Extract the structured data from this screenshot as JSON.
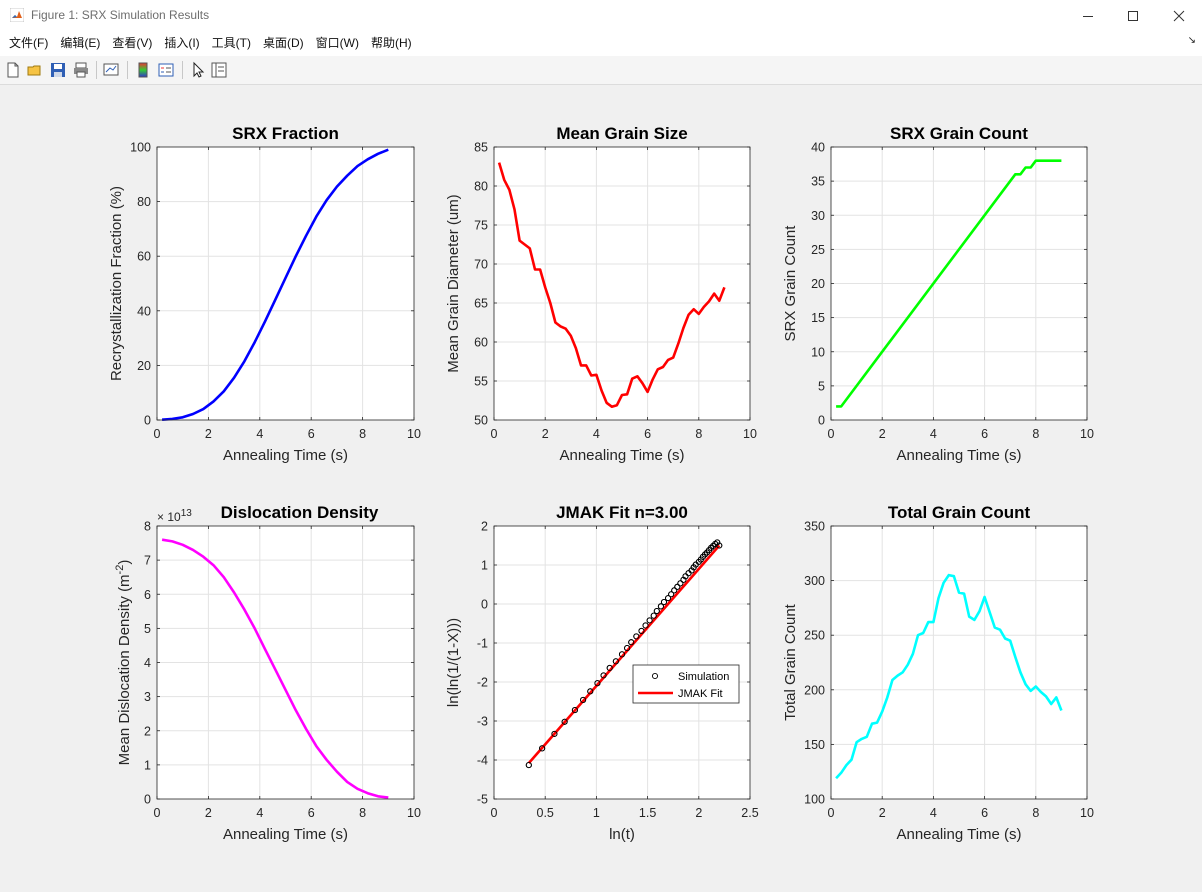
{
  "window": {
    "title": "Figure 1: SRX Simulation Results",
    "minimize_icon": "minimize-icon",
    "maximize_icon": "maximize-icon",
    "close_icon": "close-icon"
  },
  "menu": {
    "items": [
      "文件(F)",
      "编辑(E)",
      "查看(V)",
      "插入(I)",
      "工具(T)",
      "桌面(D)",
      "窗口(W)",
      "帮助(H)"
    ]
  },
  "toolbar": {
    "icons": [
      "new-figure-icon",
      "open-file-icon",
      "save-icon",
      "print-icon",
      "link-plot-icon",
      "insert-colorbar-icon",
      "insert-legend-icon",
      "edit-plot-icon",
      "property-inspector-icon"
    ]
  },
  "chart_data": [
    {
      "type": "line",
      "title": "SRX Fraction",
      "xlabel": "Annealing Time (s)",
      "ylabel": "Recrystallization Fraction (%)",
      "xlim": [
        0,
        10
      ],
      "ylim": [
        0,
        100
      ],
      "xticks": [
        0,
        2,
        4,
        6,
        8,
        10
      ],
      "yticks": [
        0,
        20,
        40,
        60,
        80,
        100
      ],
      "grid": true,
      "series": [
        {
          "color": "#0000ff",
          "x": [
            0.2,
            0.6,
            1.0,
            1.4,
            1.8,
            2.2,
            2.6,
            3.0,
            3.4,
            3.8,
            4.2,
            4.6,
            5.0,
            5.4,
            5.8,
            6.2,
            6.6,
            7.0,
            7.4,
            7.8,
            8.2,
            8.6,
            9.0
          ],
          "y": [
            0.1,
            0.4,
            1.0,
            2.2,
            4.0,
            6.8,
            10.5,
            15.5,
            21.5,
            28.5,
            36.0,
            44.0,
            52.0,
            60.0,
            67.5,
            74.5,
            80.5,
            85.5,
            89.5,
            93.0,
            95.5,
            97.5,
            99.0
          ]
        }
      ]
    },
    {
      "type": "line",
      "title": "Mean Grain Size",
      "xlabel": "Annealing Time (s)",
      "ylabel": "Mean Grain Diameter (um)",
      "xlim": [
        0,
        10
      ],
      "ylim": [
        50,
        85
      ],
      "xticks": [
        0,
        2,
        4,
        6,
        8,
        10
      ],
      "yticks": [
        50,
        55,
        60,
        65,
        70,
        75,
        80,
        85
      ],
      "grid": true,
      "series": [
        {
          "color": "#ff0000",
          "x": [
            0.2,
            0.4,
            0.6,
            0.8,
            1.0,
            1.2,
            1.4,
            1.6,
            1.8,
            2.0,
            2.2,
            2.4,
            2.6,
            2.8,
            3.0,
            3.2,
            3.4,
            3.6,
            3.8,
            4.0,
            4.2,
            4.4,
            4.6,
            4.8,
            5.0,
            5.2,
            5.4,
            5.6,
            5.8,
            6.0,
            6.2,
            6.4,
            6.6,
            6.8,
            7.0,
            7.2,
            7.4,
            7.6,
            7.8,
            8.0,
            8.2,
            8.4,
            8.6,
            8.8,
            9.0
          ],
          "y": [
            83.0,
            80.8,
            79.5,
            77.0,
            73.0,
            72.5,
            72.0,
            69.3,
            69.3,
            67.0,
            65.0,
            62.5,
            62.0,
            61.7,
            60.8,
            59.2,
            57.0,
            57.0,
            55.7,
            55.8,
            53.8,
            52.2,
            51.7,
            51.9,
            53.2,
            53.3,
            55.3,
            55.6,
            54.7,
            53.6,
            55.2,
            56.5,
            56.8,
            57.7,
            58.0,
            59.8,
            61.8,
            63.5,
            64.2,
            63.6,
            64.5,
            65.2,
            66.2,
            65.3,
            67.0
          ]
        }
      ]
    },
    {
      "type": "line",
      "title": "SRX Grain Count",
      "xlabel": "Annealing Time (s)",
      "ylabel": "SRX Grain Count",
      "xlim": [
        0,
        10
      ],
      "ylim": [
        0,
        40
      ],
      "xticks": [
        0,
        2,
        4,
        6,
        8,
        10
      ],
      "yticks": [
        0,
        5,
        10,
        15,
        20,
        25,
        30,
        35,
        40
      ],
      "grid": true,
      "series": [
        {
          "color": "#00ff00",
          "x": [
            0.2,
            0.4,
            7.2,
            7.4,
            7.6,
            7.8,
            8.0,
            8.2,
            9.0
          ],
          "y": [
            2,
            2,
            36,
            36,
            37,
            37,
            38,
            38,
            38
          ]
        }
      ]
    },
    {
      "type": "line",
      "title": "Dislocation Density",
      "xlabel": "Annealing Time (s)",
      "ylabel": "Mean Dislocation Density (m",
      "ylabel_sup": "-2",
      "ylabel_end": ")",
      "exponent_base": "× 10",
      "exponent_power": "13",
      "xlim": [
        0,
        10
      ],
      "ylim": [
        0,
        8
      ],
      "xticks": [
        0,
        2,
        4,
        6,
        8,
        10
      ],
      "yticks": [
        0,
        1,
        2,
        3,
        4,
        5,
        6,
        7,
        8
      ],
      "grid": true,
      "series": [
        {
          "color": "#ff00ff",
          "x": [
            0.2,
            0.6,
            1.0,
            1.4,
            1.8,
            2.2,
            2.6,
            3.0,
            3.4,
            3.8,
            4.2,
            4.6,
            5.0,
            5.4,
            5.8,
            6.2,
            6.6,
            7.0,
            7.4,
            7.8,
            8.2,
            8.6,
            9.0
          ],
          "y": [
            7.6,
            7.55,
            7.45,
            7.3,
            7.1,
            6.85,
            6.5,
            6.05,
            5.55,
            5.0,
            4.4,
            3.8,
            3.2,
            2.6,
            2.05,
            1.55,
            1.15,
            0.8,
            0.5,
            0.3,
            0.17,
            0.08,
            0.04
          ]
        }
      ]
    },
    {
      "type": "scatter",
      "title": "JMAK Fit n=3.00",
      "xlabel": "ln(t)",
      "ylabel": "ln(ln(1/(1-X)))",
      "xlim": [
        0,
        2.5
      ],
      "ylim": [
        -5,
        2
      ],
      "xticks": [
        0,
        0.5,
        1,
        1.5,
        2,
        2.5
      ],
      "yticks": [
        -5,
        -4,
        -3,
        -2,
        -1,
        0,
        1,
        2
      ],
      "grid": true,
      "legend": {
        "placement": "right-lower-middle",
        "entries": [
          "Simulation",
          "JMAK Fit"
        ]
      },
      "series": [
        {
          "name": "Simulation",
          "marker": "circle",
          "color": "#000000",
          "x": [
            0.34,
            0.47,
            0.59,
            0.69,
            0.79,
            0.87,
            0.94,
            1.01,
            1.07,
            1.13,
            1.19,
            1.25,
            1.3,
            1.34,
            1.39,
            1.44,
            1.48,
            1.52,
            1.56,
            1.59,
            1.63,
            1.66,
            1.7,
            1.73,
            1.76,
            1.79,
            1.82,
            1.85,
            1.87,
            1.9,
            1.93,
            1.95,
            1.97,
            2.0,
            2.02,
            2.04,
            2.06,
            2.08,
            2.1,
            2.12,
            2.14,
            2.16,
            2.18,
            2.2
          ],
          "y": [
            -4.13,
            -3.7,
            -3.33,
            -3.02,
            -2.72,
            -2.46,
            -2.24,
            -2.03,
            -1.83,
            -1.64,
            -1.47,
            -1.29,
            -1.13,
            -0.98,
            -0.83,
            -0.69,
            -0.55,
            -0.42,
            -0.3,
            -0.18,
            -0.06,
            0.05,
            0.15,
            0.25,
            0.35,
            0.44,
            0.53,
            0.62,
            0.71,
            0.79,
            0.86,
            0.94,
            1.01,
            1.08,
            1.14,
            1.21,
            1.27,
            1.32,
            1.38,
            1.44,
            1.49,
            1.54,
            1.58,
            1.5
          ]
        },
        {
          "name": "JMAK Fit",
          "color": "#ff0000",
          "x": [
            0.34,
            2.2
          ],
          "y": [
            -4.08,
            1.5
          ]
        }
      ]
    },
    {
      "type": "line",
      "title": "Total Grain Count",
      "xlabel": "Annealing Time (s)",
      "ylabel": "Total Grain Count",
      "xlim": [
        0,
        10
      ],
      "ylim": [
        100,
        350
      ],
      "xticks": [
        0,
        2,
        4,
        6,
        8,
        10
      ],
      "yticks": [
        100,
        150,
        200,
        250,
        300,
        350
      ],
      "grid": true,
      "series": [
        {
          "color": "#00ffff",
          "x": [
            0.2,
            0.4,
            0.6,
            0.8,
            1.0,
            1.2,
            1.4,
            1.6,
            1.8,
            2.0,
            2.2,
            2.4,
            2.6,
            2.8,
            3.0,
            3.2,
            3.4,
            3.6,
            3.8,
            4.0,
            4.2,
            4.4,
            4.6,
            4.8,
            5.0,
            5.2,
            5.4,
            5.6,
            5.8,
            6.0,
            6.2,
            6.4,
            6.6,
            6.8,
            7.0,
            7.2,
            7.4,
            7.6,
            7.8,
            8.0,
            8.2,
            8.4,
            8.6,
            8.8,
            9.0
          ],
          "y": [
            119,
            124,
            131,
            136,
            152,
            155,
            157,
            169,
            170,
            180,
            193,
            209,
            213,
            216,
            223,
            233,
            250,
            252,
            262,
            262,
            284,
            298,
            305,
            304,
            289,
            288,
            267,
            264,
            272,
            285,
            271,
            257,
            255,
            247,
            245,
            230,
            216,
            205,
            199,
            203,
            198,
            194,
            187,
            193,
            181
          ]
        }
      ]
    }
  ]
}
